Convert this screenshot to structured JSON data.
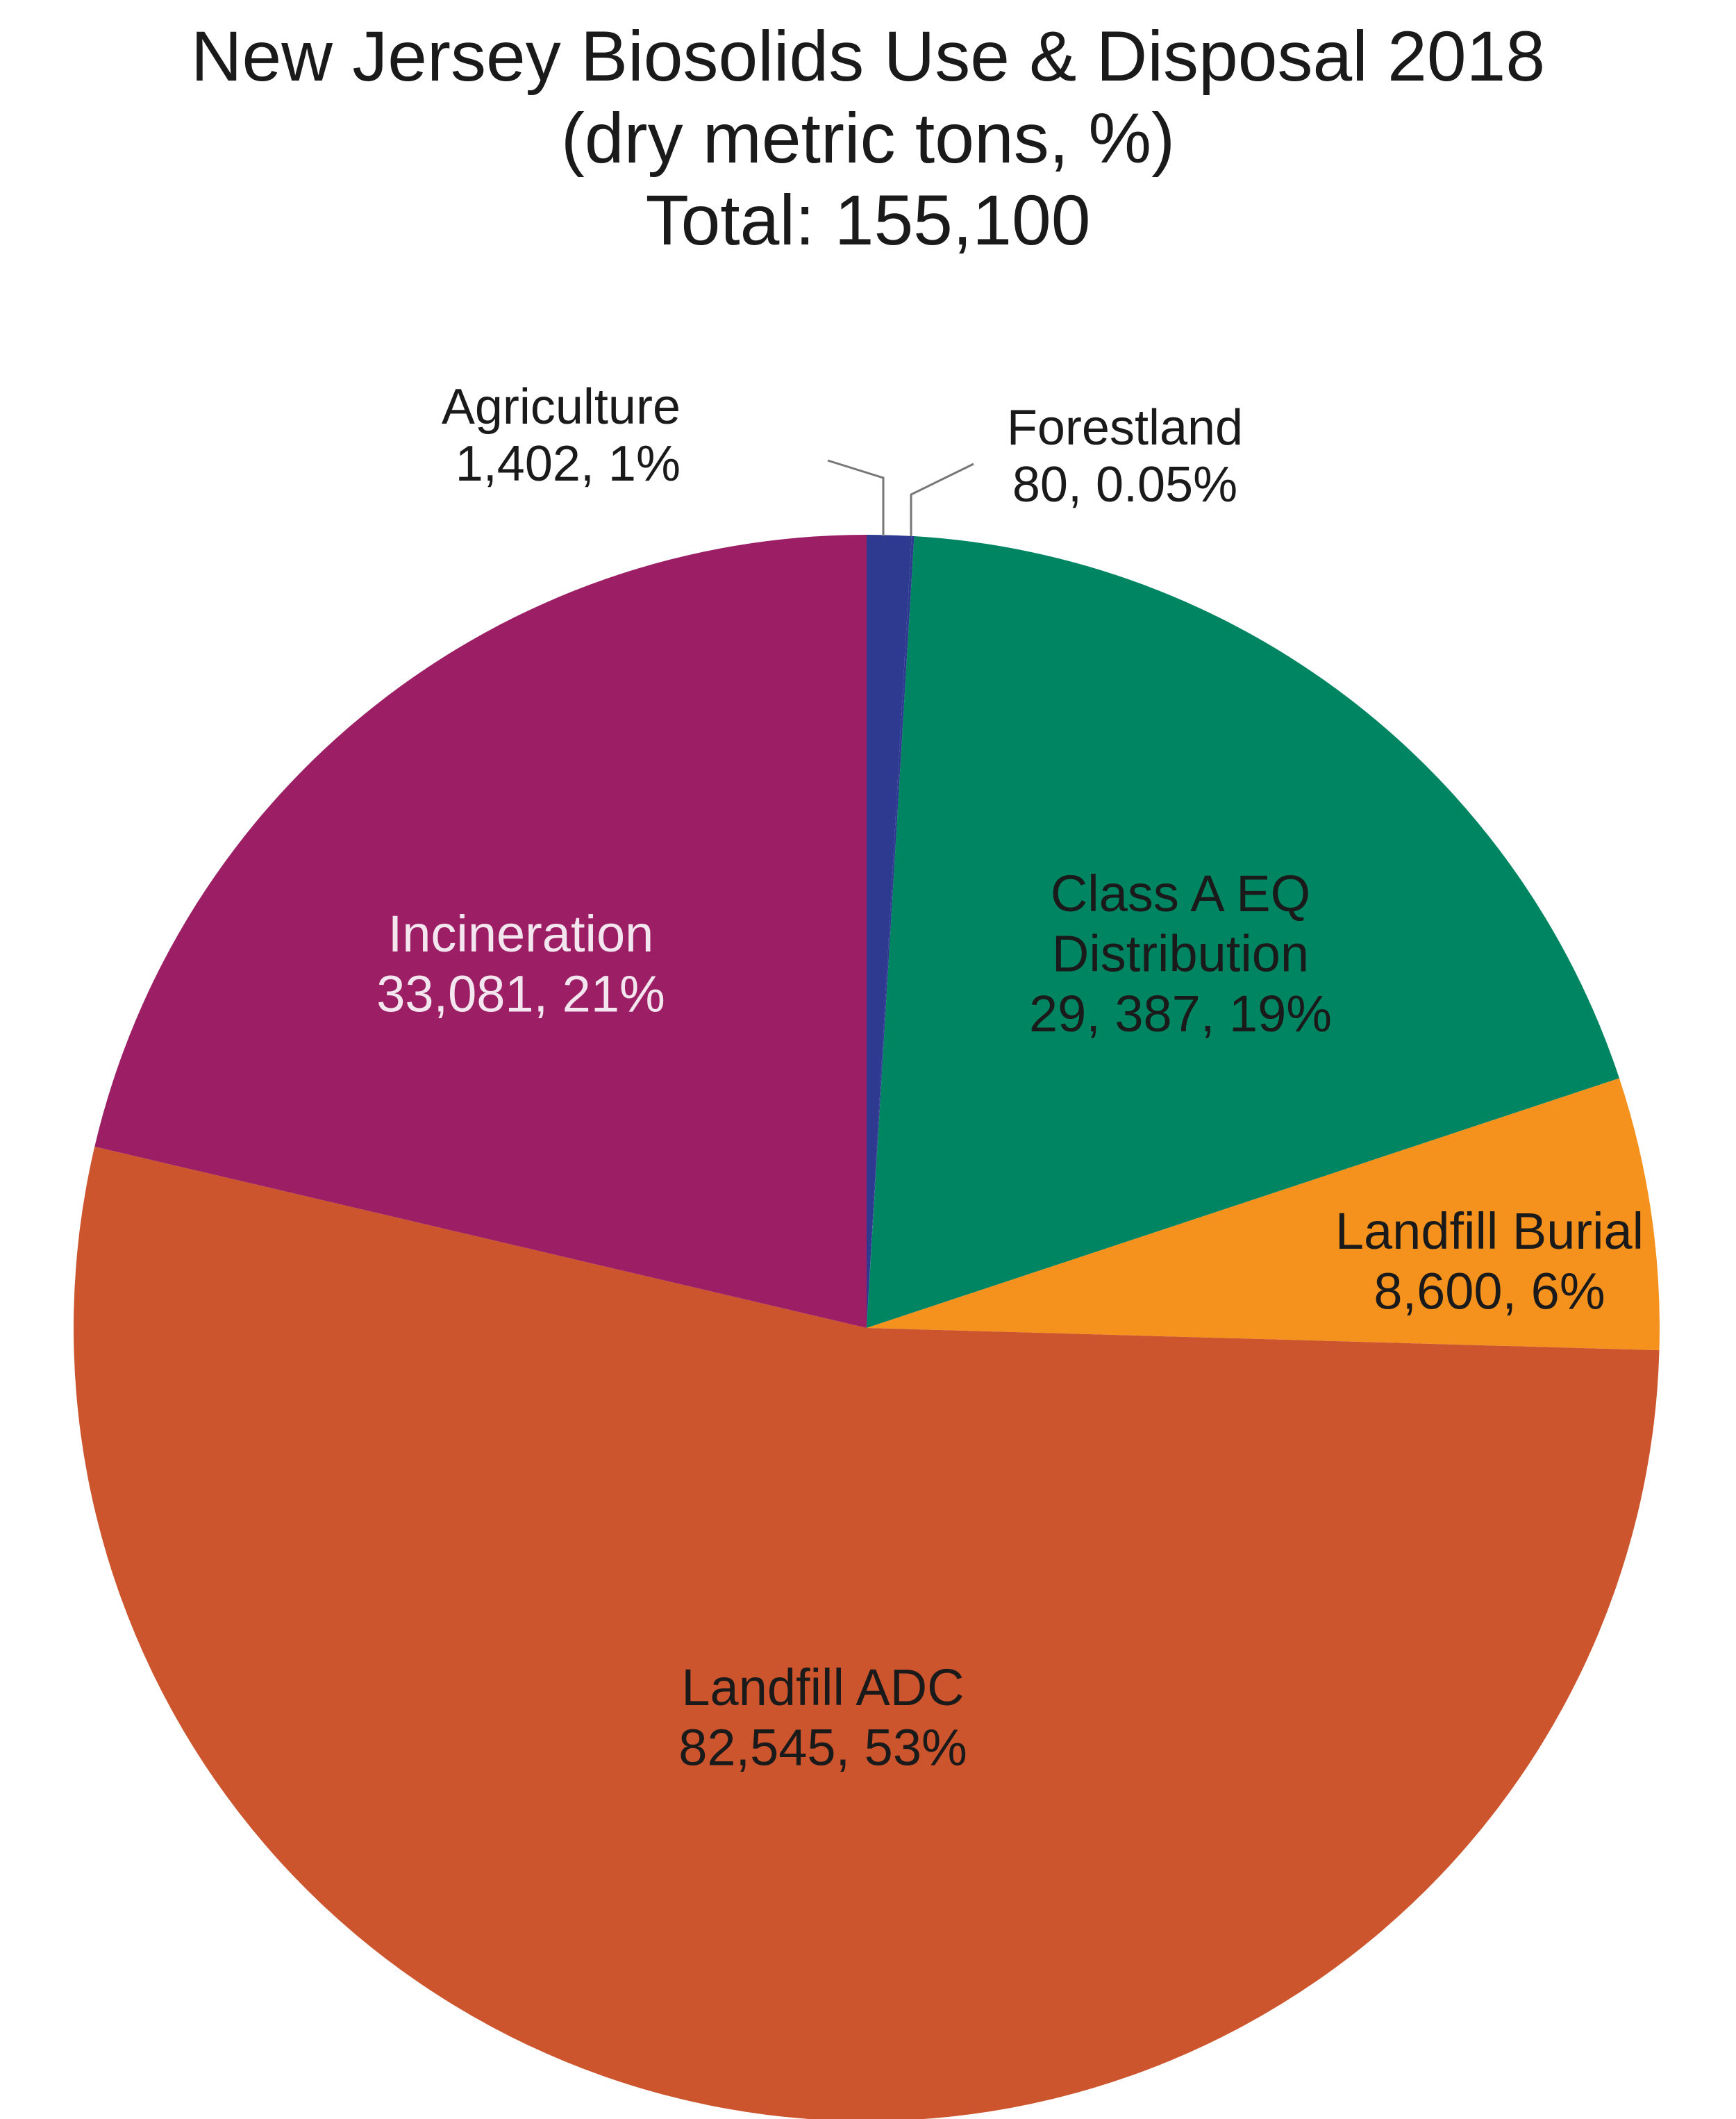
{
  "chart_data": {
    "type": "pie",
    "title": "New Jersey Biosolids Use & Disposal 2018",
    "subtitle": "(dry metric tons, %)",
    "total_label": "Total: 155,100",
    "slices": [
      {
        "name": "Agriculture",
        "value": 1402,
        "percent": 1,
        "value_label": "1,402, 1%",
        "color": "#2e3a8f",
        "label_lines": [
          "Agriculture",
          "1,402, 1%"
        ],
        "label_color": "#1a1a1a"
      },
      {
        "name": "Forestland",
        "value": 80,
        "percent": 0.05,
        "value_label": "80, 0.05%",
        "color": "#2e3a8f",
        "label_lines": [
          "Forestland",
          "80, 0.05%"
        ],
        "label_color": "#1a1a1a"
      },
      {
        "name": "Class A EQ Distribution",
        "value": 29387,
        "percent": 19,
        "value_label": "29, 387, 19%",
        "color": "#008562",
        "label_lines": [
          "Class A EQ",
          "Distribution",
          "29, 387, 19%"
        ],
        "label_color": "#1a1a1a"
      },
      {
        "name": "Landfill Burial",
        "value": 8600,
        "percent": 6,
        "value_label": "8,600, 6%",
        "color": "#f5921e",
        "label_lines": [
          "Landfill Burial",
          "8,600, 6%"
        ],
        "label_color": "#1a1a1a"
      },
      {
        "name": "Landfill ADC",
        "value": 82545,
        "percent": 53,
        "value_label": "82,545, 53%",
        "color": "#cc552e",
        "label_lines": [
          "Landfill ADC",
          "82,545, 53%"
        ],
        "label_color": "#1a1a1a"
      },
      {
        "name": "Incineration",
        "value": 33081,
        "percent": 21,
        "value_label": "33,081, 21%",
        "color": "#9c1f66",
        "label_lines": [
          "Incineration",
          "33,081, 21%"
        ],
        "label_color": "#f3e6ee"
      }
    ]
  }
}
